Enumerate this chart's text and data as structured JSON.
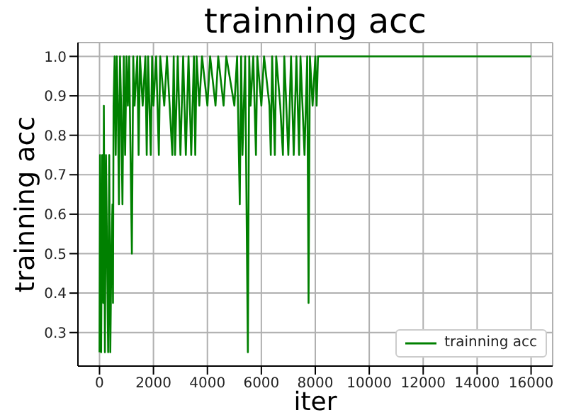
{
  "chart_data": {
    "type": "line",
    "title": "trainning acc",
    "xlabel": "iter",
    "ylabel": "trainning acc",
    "xlim": [
      -800,
      16800
    ],
    "xticks": [
      0,
      2000,
      4000,
      6000,
      8000,
      10000,
      12000,
      14000,
      16000
    ],
    "ylim": [
      0.215,
      1.035
    ],
    "yticks": [
      0.3,
      0.4,
      0.5,
      0.6,
      0.7,
      0.8,
      0.9,
      {
        "value": 1,
        "label": "1.0"
      }
    ],
    "grid": true,
    "legend": "bottom right",
    "series": [
      {
        "name": "trainning acc",
        "color": "#008000",
        "x": [
          0,
          20,
          40,
          60,
          100,
          140,
          160,
          200,
          240,
          280,
          320,
          360,
          400,
          440,
          480,
          500,
          520,
          560,
          600,
          640,
          680,
          720,
          760,
          800,
          850,
          900,
          950,
          1000,
          1050,
          1100,
          1200,
          1250,
          1300,
          1400,
          1450,
          1500,
          1600,
          1700,
          1750,
          1800,
          1900,
          1950,
          2000,
          2100,
          2200,
          2250,
          2400,
          2500,
          2700,
          2750,
          2800,
          2900,
          3000,
          3100,
          3200,
          3300,
          3400,
          3500,
          3550,
          3600,
          3700,
          3800,
          4000,
          4100,
          4300,
          4400,
          4600,
          4700,
          5000,
          5100,
          5200,
          5250,
          5300,
          5400,
          5450,
          5500,
          5550,
          5600,
          5700,
          5800,
          5850,
          6000,
          6100,
          6300,
          6350,
          6400,
          6500,
          6550,
          6700,
          6800,
          6850,
          7000,
          7100,
          7200,
          7300,
          7400,
          7450,
          7600,
          7700,
          7750,
          7800,
          7900,
          8000,
          8050,
          8100,
          16000
        ],
        "values": [
          0.25,
          0.75,
          0.5,
          0.25,
          0.75,
          0.375,
          0.875,
          0.25,
          0.75,
          0.5,
          0.25,
          0.75,
          0.25,
          0.5,
          0.625,
          0.375,
          0.875,
          1,
          0.75,
          1,
          0.875,
          0.625,
          1,
          0.875,
          0.625,
          1,
          0.75,
          1,
          0.875,
          1,
          0.5,
          1,
          0.875,
          1,
          0.75,
          1,
          0.875,
          1,
          0.75,
          1,
          0.75,
          1,
          0.875,
          1,
          0.75,
          1,
          0.875,
          1,
          0.75,
          1,
          0.75,
          1,
          0.75,
          1,
          0.75,
          1,
          0.75,
          1,
          0.75,
          1,
          0.875,
          1,
          0.875,
          1,
          0.875,
          1,
          0.875,
          1,
          0.875,
          1,
          0.625,
          1,
          0.75,
          1,
          0.625,
          0.25,
          1,
          0.875,
          1,
          0.75,
          1,
          0.875,
          1,
          0.875,
          0.75,
          1,
          0.75,
          1,
          0.875,
          0.75,
          1,
          0.75,
          1,
          0.75,
          1,
          0.75,
          1,
          0.75,
          1,
          0.375,
          1,
          0.875,
          1,
          0.875,
          1,
          1
        ]
      }
    ]
  }
}
